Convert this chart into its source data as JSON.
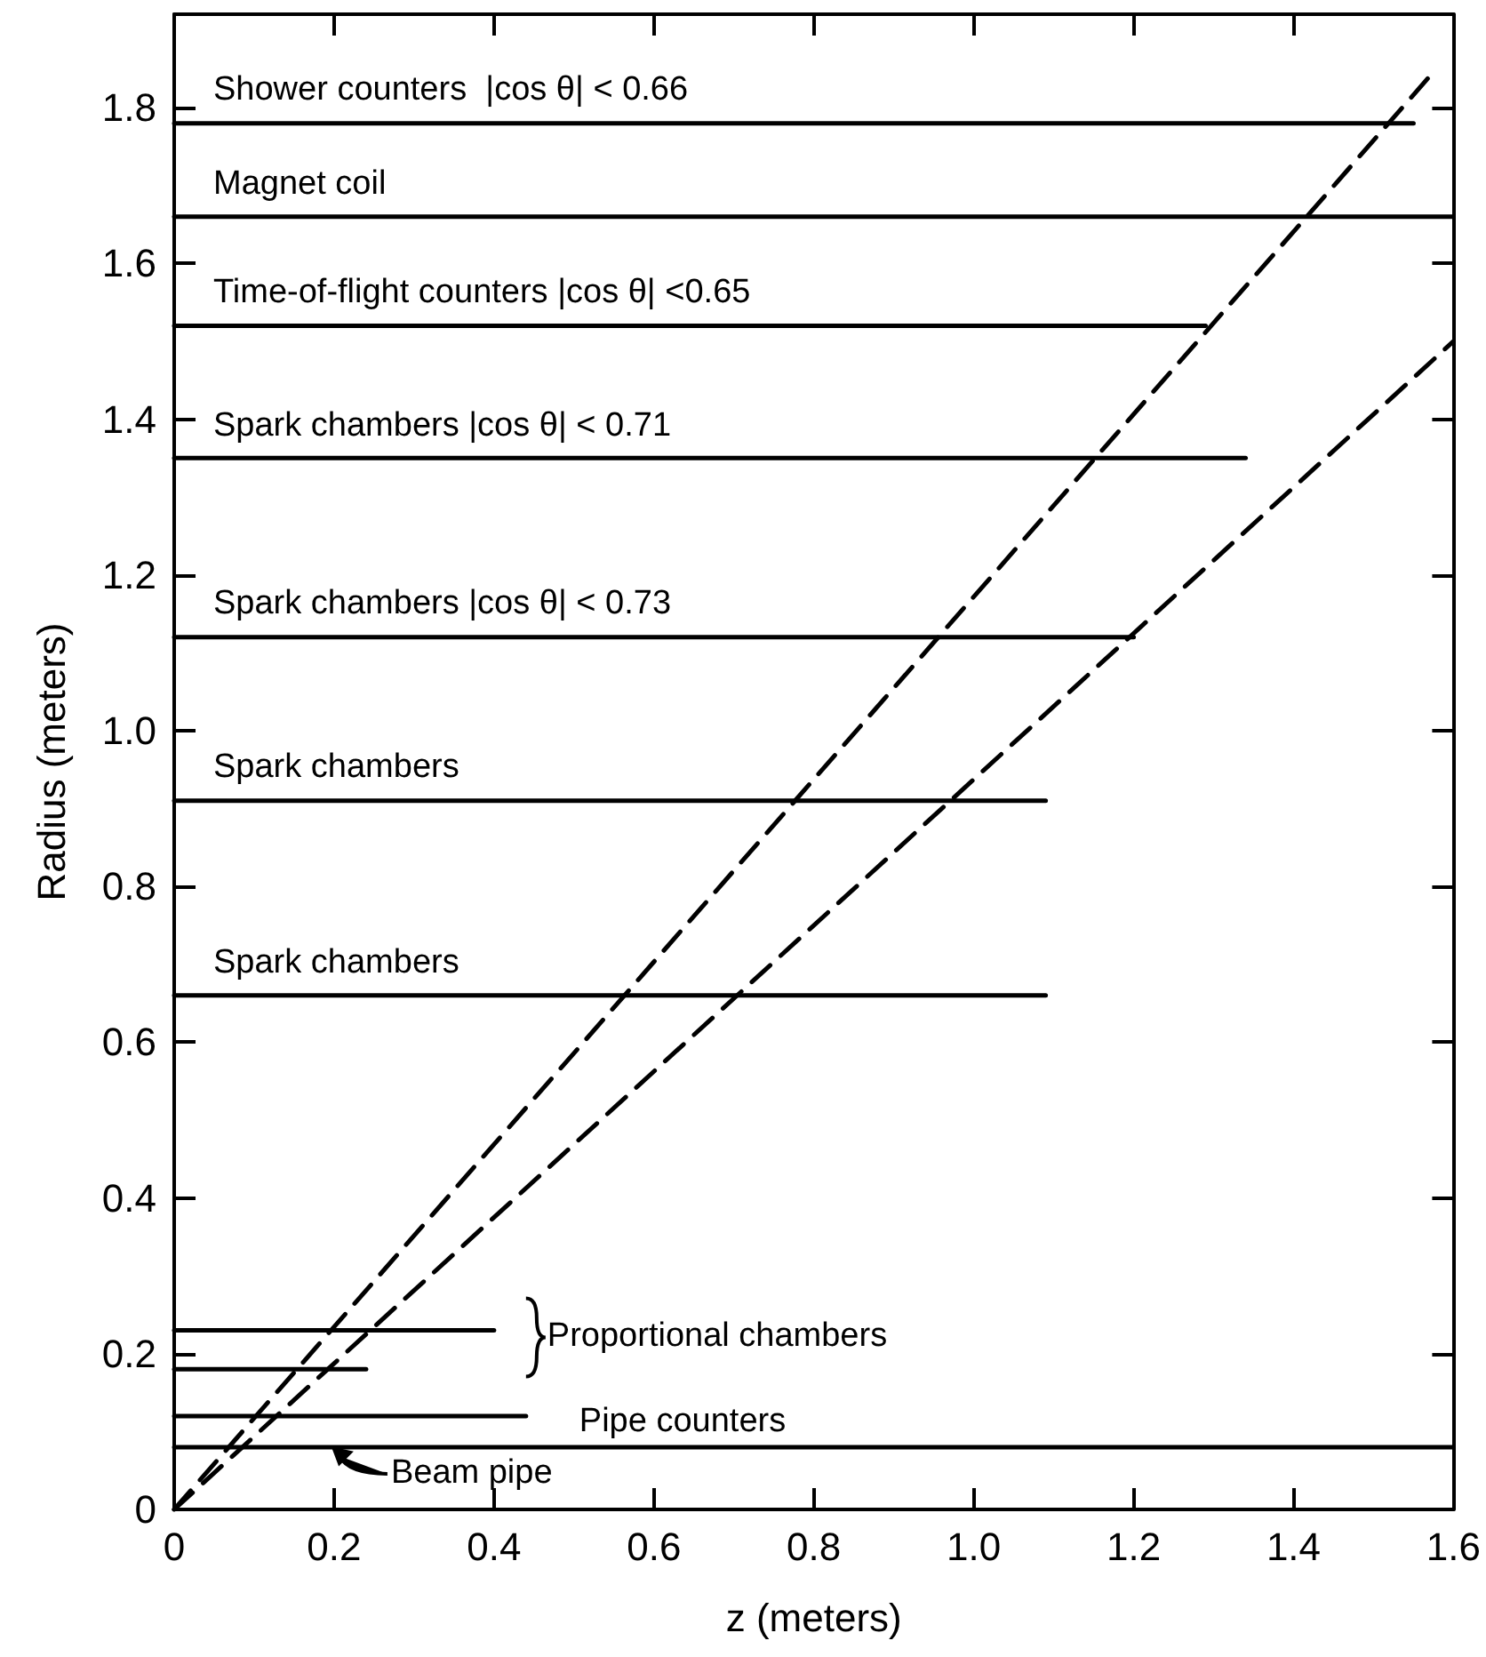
{
  "chart_data": {
    "type": "line",
    "xlabel": "z (meters)",
    "ylabel": "Radius (meters)",
    "xlim": [
      0,
      1.6
    ],
    "ylim": [
      0,
      1.92
    ],
    "xticks": [
      0,
      0.2,
      0.4,
      0.6,
      0.8,
      {
        "value": 1,
        "label": "1.0"
      },
      1.2,
      1.4,
      1.6
    ],
    "yticks": [
      0,
      0.2,
      0.4,
      0.6,
      0.8,
      {
        "value": 1,
        "label": "1.0"
      },
      1.2,
      1.4,
      1.6,
      1.8
    ],
    "grid": false,
    "marker": "none",
    "line_style": "solid",
    "series": [
      {
        "color": "#000000",
        "x": [
          0,
          1.55
        ],
        "values": [
          1.78,
          1.78
        ]
      },
      {
        "color": "#000000",
        "x": [
          0,
          1.6
        ],
        "values": [
          1.66,
          1.66
        ]
      },
      {
        "color": "#000000",
        "x": [
          0,
          1.29
        ],
        "values": [
          1.52,
          1.52
        ]
      },
      {
        "color": "#000000",
        "x": [
          0,
          1.34
        ],
        "values": [
          1.35,
          1.35
        ]
      },
      {
        "color": "#000000",
        "x": [
          0,
          1.2
        ],
        "values": [
          1.12,
          1.12
        ]
      },
      {
        "color": "#000000",
        "x": [
          0,
          1.09
        ],
        "values": [
          0.91,
          0.91
        ]
      },
      {
        "color": "#000000",
        "x": [
          0,
          1.09
        ],
        "values": [
          0.66,
          0.66
        ]
      },
      {
        "color": "#000000",
        "x": [
          0,
          0.4
        ],
        "values": [
          0.23,
          0.23
        ]
      },
      {
        "color": "#000000",
        "x": [
          0,
          0.24
        ],
        "values": [
          0.18,
          0.18
        ]
      },
      {
        "color": "#000000",
        "x": [
          0,
          0.44
        ],
        "values": [
          0.12,
          0.12
        ]
      },
      {
        "color": "#000000",
        "x": [
          0,
          1.6
        ],
        "values": [
          0.08,
          0.08
        ]
      },
      {
        "color": "#000000",
        "x": [
          0,
          1.57
        ],
        "values": [
          0,
          1.84
        ],
        "line_style": "dashed"
      },
      {
        "color": "#000000",
        "x": [
          0,
          1.6
        ],
        "values": [
          0,
          1.5
        ],
        "line_style": "dashed"
      }
    ],
    "annotations": [
      {
        "text": "Shower counters  |cos θ| < 0.66",
        "x": 0,
        "y": 1.78
      },
      {
        "text": "Magnet coil",
        "x": 0,
        "y": 1.66
      },
      {
        "text": "Time-of-flight counters |cos θ| <0.65",
        "x": 0,
        "y": 1.52
      },
      {
        "text": "Spark chambers |cos θ| < 0.71",
        "x": 0,
        "y": 1.35
      },
      {
        "text": "Spark chambers |cos θ| < 0.73",
        "x": 0,
        "y": 1.12
      },
      {
        "text": "Spark chambers",
        "x": 0,
        "y": 0.91
      },
      {
        "text": "Spark chambers",
        "x": 0,
        "y": 0.66
      },
      {
        "text": "Proportional chambers",
        "x": 0.4,
        "y": 0.23
      },
      {
        "text": "Pipe counters",
        "x": 0.44,
        "y": 0.12
      },
      {
        "text": "Beam pipe",
        "x": 0.2,
        "y": 0.08
      }
    ]
  }
}
